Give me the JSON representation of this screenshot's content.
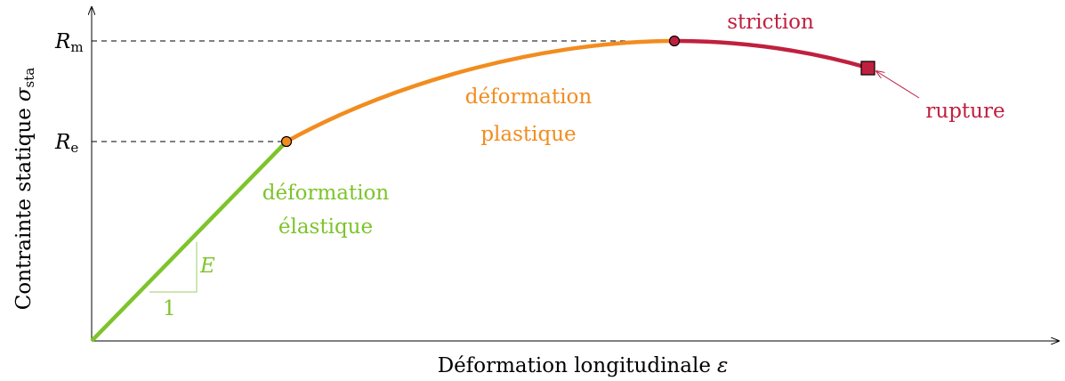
{
  "y_axis": {
    "label": "Contrainte statique",
    "symbol": "σ",
    "subscript": "sta"
  },
  "x_axis": {
    "label": "Déformation longitudinale",
    "symbol": "ε"
  },
  "levels": [
    {
      "symbol": "R",
      "subscript": "m"
    },
    {
      "symbol": "R",
      "subscript": "e"
    }
  ],
  "regions": {
    "elastic": [
      "déformation",
      "élastique"
    ],
    "plastic": [
      "déformation",
      "plastique"
    ],
    "striction": "striction"
  },
  "slope": {
    "rise": "E",
    "run": "1"
  },
  "rupture": "rupture"
}
